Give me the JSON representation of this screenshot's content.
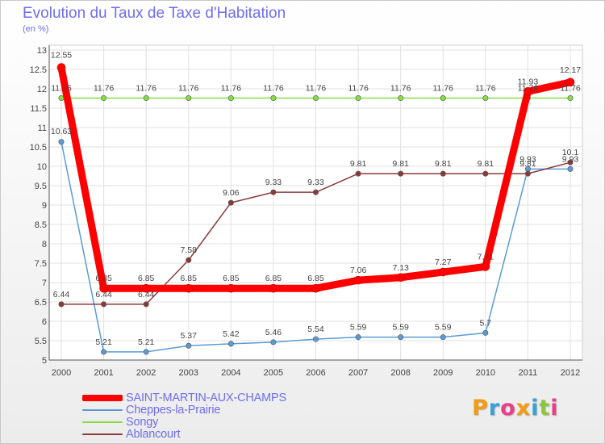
{
  "chart_data": {
    "type": "line",
    "title": "Evolution du Taux de Taxe d'Habitation",
    "subtitle": "(en %)",
    "x": [
      "2000",
      "2001",
      "2002",
      "2003",
      "2004",
      "2005",
      "2006",
      "2007",
      "2008",
      "2009",
      "2010",
      "2011",
      "2012"
    ],
    "ylim": [
      5,
      13
    ],
    "yticks": [
      "5",
      "5.5",
      "6",
      "6.5",
      "7",
      "7.5",
      "8",
      "8.5",
      "9",
      "9.5",
      "10",
      "10.5",
      "11",
      "11.5",
      "12",
      "12.5",
      "13"
    ],
    "grid": true,
    "legend_position": "bottom-left",
    "series": [
      {
        "name": "SAINT-MARTIN-AUX-CHAMPS",
        "color": "#ff0000",
        "values": [
          12.55,
          6.85,
          6.85,
          6.85,
          6.85,
          6.85,
          6.85,
          7.06,
          7.13,
          7.27,
          7.41,
          11.93,
          12.17
        ],
        "labels": [
          "12.55",
          "6.85",
          "6.85",
          "6.85",
          "6.85",
          "6.85",
          "6.85",
          "7.06",
          "7.13",
          "7.27",
          "7.41",
          "11.93",
          "12.17"
        ]
      },
      {
        "name": "Cheppes-la-Prairie",
        "color": "#5b9bd5",
        "values": [
          10.63,
          5.21,
          5.21,
          5.37,
          5.42,
          5.46,
          5.54,
          5.59,
          5.59,
          5.59,
          5.7,
          9.93,
          9.93
        ],
        "labels": [
          "10.63",
          "5.21",
          "5.21",
          "5.37",
          "5.42",
          "5.46",
          "5.54",
          "5.59",
          "5.59",
          "5.59",
          "5.7",
          "9.93",
          "9.93"
        ]
      },
      {
        "name": "Songy",
        "color": "#88dd44",
        "values": [
          11.76,
          11.76,
          11.76,
          11.76,
          11.76,
          11.76,
          11.76,
          11.76,
          11.76,
          11.76,
          11.76,
          11.76,
          11.76
        ],
        "labels": [
          "11.76",
          "11.76",
          "11.76",
          "11.76",
          "11.76",
          "11.76",
          "11.76",
          "11.76",
          "11.76",
          "11.76",
          "11.76",
          "11.76",
          "11.76"
        ]
      },
      {
        "name": "Ablancourt",
        "color": "#8b3a3a",
        "values": [
          6.44,
          6.44,
          6.44,
          7.58,
          9.06,
          9.33,
          9.33,
          9.81,
          9.81,
          9.81,
          9.81,
          9.81,
          10.1
        ],
        "labels": [
          "6.44",
          "6.44",
          "6.44",
          "7.58",
          "9.06",
          "9.33",
          "9.33",
          "9.81",
          "9.81",
          "9.81",
          "9.81",
          "9.81",
          "10.1"
        ]
      }
    ]
  },
  "logo": {
    "text": "Proxiti",
    "letters": [
      "P",
      "r",
      "o",
      "x",
      "i",
      "t",
      "i"
    ]
  }
}
